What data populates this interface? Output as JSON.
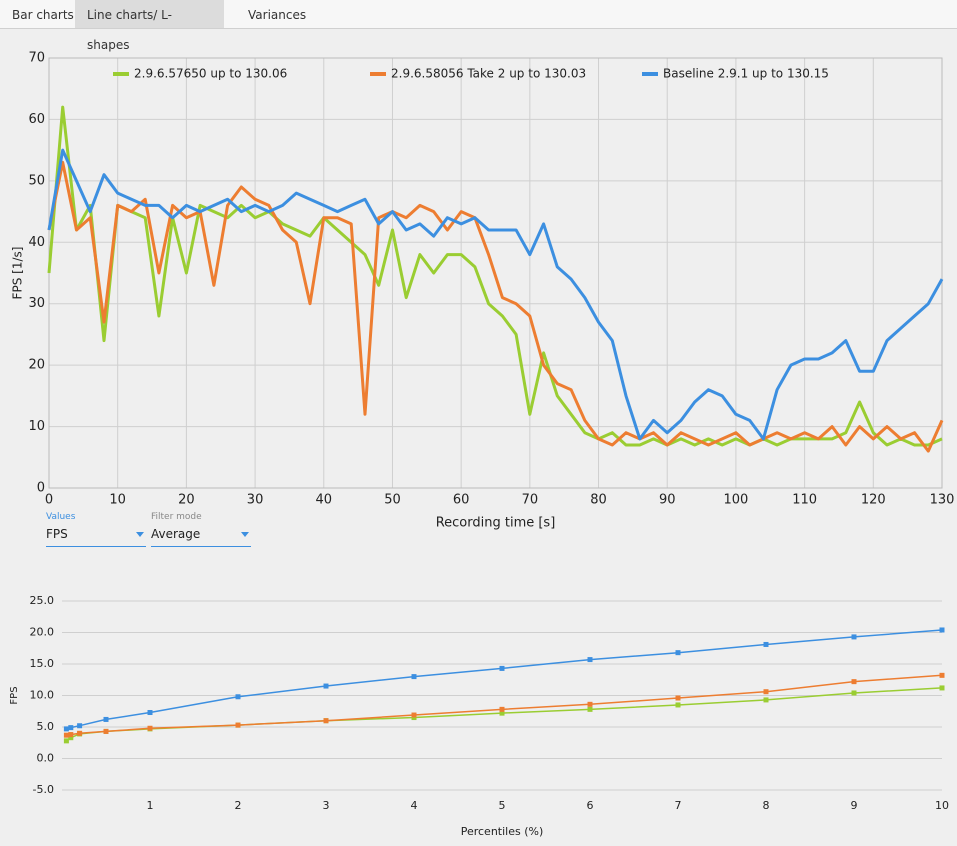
{
  "tabs": [
    "Bar charts",
    "Line charts/ L-shapes",
    "Variances"
  ],
  "selected_tab": 1,
  "controls": [
    {
      "label": "Values",
      "value": "FPS"
    },
    {
      "label": "Filter mode",
      "value": "Average"
    }
  ],
  "chart_data": [
    {
      "type": "line",
      "x_label": "Recording time [s]",
      "y_label": "FPS [1/s]",
      "x": [
        0,
        2,
        4,
        6,
        8,
        10,
        12,
        14,
        16,
        18,
        20,
        22,
        24,
        26,
        28,
        30,
        32,
        34,
        36,
        38,
        40,
        42,
        44,
        46,
        48,
        50,
        52,
        54,
        56,
        58,
        60,
        62,
        64,
        66,
        68,
        70,
        72,
        74,
        76,
        78,
        80,
        82,
        84,
        86,
        88,
        90,
        92,
        94,
        96,
        98,
        100,
        102,
        104,
        106,
        108,
        110,
        112,
        114,
        116,
        118,
        120,
        122,
        124,
        126,
        128,
        130
      ],
      "xlim": [
        0,
        130
      ],
      "xticks": [
        0,
        10,
        20,
        30,
        40,
        50,
        60,
        70,
        80,
        90,
        100,
        110,
        120,
        130
      ],
      "ylim": [
        0,
        70
      ],
      "yticks": [
        0,
        10,
        20,
        30,
        40,
        50,
        60,
        70
      ],
      "grid": "both",
      "legend": "top",
      "line_width": 3,
      "series": [
        {
          "name": "2.9.6.57650 up to 130.06",
          "color": "#9acd32",
          "values": [
            35,
            62,
            42,
            46,
            24,
            46,
            45,
            44,
            28,
            44,
            35,
            46,
            45,
            44,
            46,
            44,
            45,
            43,
            42,
            41,
            44,
            42,
            40,
            38,
            33,
            42,
            31,
            38,
            35,
            38,
            38,
            36,
            30,
            28,
            25,
            12,
            22,
            15,
            12,
            9,
            8,
            9,
            7,
            7,
            8,
            7,
            8,
            7,
            8,
            7,
            8,
            7,
            8,
            7,
            8,
            8,
            8,
            8,
            9,
            14,
            9,
            7,
            8,
            7,
            7,
            8
          ]
        },
        {
          "name": "2.9.6.58056 Take 2 up to 130.03",
          "color": "#ed7d31",
          "values": [
            42,
            53,
            42,
            44,
            27,
            46,
            45,
            47,
            35,
            46,
            44,
            45,
            33,
            46,
            49,
            47,
            46,
            42,
            40,
            30,
            44,
            44,
            43,
            12,
            44,
            45,
            44,
            46,
            45,
            42,
            45,
            44,
            38,
            31,
            30,
            28,
            20,
            17,
            16,
            11,
            8,
            7,
            9,
            8,
            9,
            7,
            9,
            8,
            7,
            8,
            9,
            7,
            8,
            9,
            8,
            9,
            8,
            10,
            7,
            10,
            8,
            10,
            8,
            9,
            6,
            11
          ]
        },
        {
          "name": "Baseline 2.9.1 up to 130.15",
          "color": "#3c8fe0",
          "values": [
            42,
            55,
            50,
            45,
            51,
            48,
            47,
            46,
            46,
            44,
            46,
            45,
            46,
            47,
            45,
            46,
            45,
            46,
            48,
            47,
            46,
            45,
            46,
            47,
            43,
            45,
            42,
            43,
            41,
            44,
            43,
            44,
            42,
            42,
            42,
            38,
            43,
            36,
            34,
            31,
            27,
            24,
            15,
            8,
            11,
            9,
            11,
            14,
            16,
            15,
            12,
            11,
            8,
            16,
            20,
            21,
            21,
            22,
            24,
            19,
            19,
            24,
            26,
            28,
            30,
            34
          ]
        }
      ]
    },
    {
      "type": "line",
      "x_label": "Percentiles (%)",
      "y_label": "FPS",
      "x": [
        0.05,
        0.1,
        0.2,
        0.5,
        1,
        2,
        3,
        4,
        5,
        6,
        7,
        8,
        9,
        10
      ],
      "xlim": [
        0,
        10
      ],
      "xticks": [
        1,
        2,
        3,
        4,
        5,
        6,
        7,
        8,
        9,
        10
      ],
      "ylim": [
        -5,
        25
      ],
      "yticks": [
        {
          "value": -5,
          "label": "-5.0"
        },
        {
          "value": 0,
          "label": "0.0"
        },
        {
          "value": 5,
          "label": "5.0"
        },
        {
          "value": 10,
          "label": "10.0"
        },
        {
          "value": 15,
          "label": "15.0"
        },
        {
          "value": 20,
          "label": "20.0"
        },
        {
          "value": 25,
          "label": "25.0"
        }
      ],
      "grid": "y",
      "markers": true,
      "line_width": 1.5,
      "series": [
        {
          "color": "#9acd32",
          "values": [
            2.8,
            3.3,
            3.9,
            4.3,
            4.7,
            5.3,
            6.0,
            6.5,
            7.2,
            7.8,
            8.5,
            9.3,
            10.4,
            11.2
          ]
        },
        {
          "color": "#ed7d31",
          "values": [
            3.7,
            3.8,
            4.0,
            4.3,
            4.8,
            5.3,
            6.0,
            6.9,
            7.8,
            8.6,
            9.6,
            10.6,
            12.2,
            13.2
          ]
        },
        {
          "color": "#3c8fe0",
          "values": [
            4.7,
            4.9,
            5.2,
            6.2,
            7.3,
            9.8,
            11.5,
            13.0,
            14.3,
            15.7,
            16.8,
            18.1,
            19.3,
            20.4
          ]
        }
      ]
    }
  ]
}
